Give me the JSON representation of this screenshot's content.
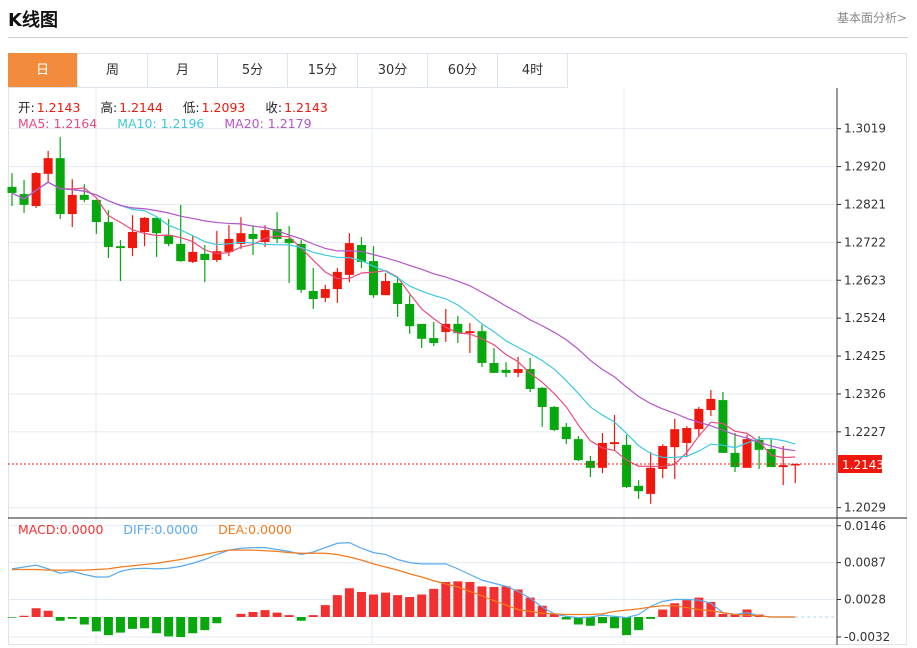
{
  "header": {
    "title": "K线图",
    "more_link": "基本面分析>"
  },
  "tabs": [
    {
      "label": "日",
      "active": true
    },
    {
      "label": "周"
    },
    {
      "label": "月"
    },
    {
      "label": "5分"
    },
    {
      "label": "15分"
    },
    {
      "label": "30分"
    },
    {
      "label": "60分"
    },
    {
      "label": "4时"
    }
  ],
  "colors": {
    "accent": "#f28c3c",
    "up": "#f0180c",
    "down": "#06a80e",
    "ma5": "#ea4c7e",
    "ma10": "#3ec9de",
    "ma20": "#b455c9",
    "macd": "#f23030",
    "diff": "#5aaaf0",
    "dea": "#f27a1e",
    "grid": "#e3ebf2"
  },
  "ohlc_info": {
    "open_label": "开:",
    "open": "1.2143",
    "high_label": "高:",
    "high": "1.2144",
    "low_label": "低:",
    "low": "1.2093",
    "close_label": "收:",
    "close": "1.2143"
  },
  "ma_info": {
    "ma5": "MA5: 1.2164",
    "ma10": "MA10: 1.2196",
    "ma20": "MA20: 1.2179"
  },
  "macd_info": {
    "macd": "MACD:0.0000",
    "diff": "DIFF:0.0000",
    "dea": "DEA:0.0000"
  },
  "current_price": "1.2143",
  "chart_data": [
    {
      "type": "candlestick",
      "y_ticks": [
        "1.3019",
        "1.2920",
        "1.2821",
        "1.2722",
        "1.2623",
        "1.2524",
        "1.2425",
        "1.2326",
        "1.2227",
        "1.2029"
      ],
      "ylim": [
        1.2029,
        1.3019
      ],
      "grid": true,
      "moving_averages": [
        5,
        10,
        20
      ],
      "ohlc": [
        [
          1.2867,
          1.2903,
          1.2817,
          1.2851
        ],
        [
          1.2848,
          1.2885,
          1.2799,
          1.282
        ],
        [
          1.2817,
          1.2906,
          1.2812,
          1.2903
        ],
        [
          1.2901,
          1.2961,
          1.2877,
          1.2942
        ],
        [
          1.2942,
          1.2997,
          1.2783,
          1.2796
        ],
        [
          1.2796,
          1.2887,
          1.2762,
          1.2846
        ],
        [
          1.2846,
          1.2874,
          1.2827,
          1.2833
        ],
        [
          1.2833,
          1.2833,
          1.2744,
          1.2775
        ],
        [
          1.2775,
          1.2806,
          1.2681,
          1.271
        ],
        [
          1.2712,
          1.2728,
          1.2621,
          1.2707
        ],
        [
          1.2707,
          1.2793,
          1.2686,
          1.2749
        ],
        [
          1.2749,
          1.2788,
          1.2712,
          1.2786
        ],
        [
          1.2786,
          1.2786,
          1.2684,
          1.2746
        ],
        [
          1.2741,
          1.2783,
          1.2712,
          1.2718
        ],
        [
          1.2718,
          1.282,
          1.2671,
          1.2673
        ],
        [
          1.2671,
          1.2739,
          1.2668,
          1.2697
        ],
        [
          1.2692,
          1.2715,
          1.2618,
          1.2676
        ],
        [
          1.2676,
          1.2752,
          1.2671,
          1.2699
        ],
        [
          1.2697,
          1.2767,
          1.2686,
          1.2731
        ],
        [
          1.2718,
          1.2788,
          1.2705,
          1.2746
        ],
        [
          1.2744,
          1.2767,
          1.2689,
          1.2731
        ],
        [
          1.2723,
          1.2767,
          1.271,
          1.2754
        ],
        [
          1.2757,
          1.2801,
          1.272,
          1.2731
        ],
        [
          1.2731,
          1.2765,
          1.2616,
          1.272
        ],
        [
          1.2718,
          1.2728,
          1.259,
          1.2598
        ],
        [
          1.2595,
          1.2655,
          1.2548,
          1.2574
        ],
        [
          1.2577,
          1.2611,
          1.2566,
          1.26
        ],
        [
          1.26,
          1.2655,
          1.2564,
          1.2645
        ],
        [
          1.2637,
          1.2746,
          1.2618,
          1.272
        ],
        [
          1.2715,
          1.2736,
          1.2655,
          1.2671
        ],
        [
          1.2673,
          1.2712,
          1.2577,
          1.2584
        ],
        [
          1.2584,
          1.2642,
          1.2584,
          1.2621
        ],
        [
          1.2616,
          1.2631,
          1.2527,
          1.2561
        ],
        [
          1.2561,
          1.2584,
          1.2483,
          1.2503
        ],
        [
          1.2509,
          1.2509,
          1.2446,
          1.247
        ],
        [
          1.2472,
          1.2514,
          1.2451,
          1.2459
        ],
        [
          1.2488,
          1.2548,
          1.2462,
          1.2509
        ],
        [
          1.2509,
          1.253,
          1.2459,
          1.2485
        ],
        [
          1.2485,
          1.2511,
          1.2433,
          1.249
        ],
        [
          1.249,
          1.2506,
          1.2396,
          1.2407
        ],
        [
          1.2407,
          1.2446,
          1.2381,
          1.2381
        ],
        [
          1.2389,
          1.2409,
          1.237,
          1.2381
        ],
        [
          1.2381,
          1.2423,
          1.237,
          1.2391
        ],
        [
          1.2391,
          1.242,
          1.2331,
          1.2339
        ],
        [
          1.2342,
          1.2344,
          1.224,
          1.2292
        ],
        [
          1.2292,
          1.2295,
          1.2229,
          1.2232
        ],
        [
          1.224,
          1.225,
          1.2195,
          1.2208
        ],
        [
          1.2208,
          1.2216,
          1.2151,
          1.2153
        ],
        [
          1.2151,
          1.2164,
          1.2109,
          1.2133
        ],
        [
          1.2133,
          1.2224,
          1.2119,
          1.2198
        ],
        [
          1.2195,
          1.2271,
          1.2177,
          1.22
        ],
        [
          1.2193,
          1.2219,
          1.208,
          1.2083
        ],
        [
          1.2086,
          1.2101,
          1.2052,
          1.2072
        ],
        [
          1.2065,
          1.2174,
          1.2039,
          1.2133
        ],
        [
          1.213,
          1.2195,
          1.2106,
          1.219
        ],
        [
          1.2187,
          1.2261,
          1.2104,
          1.2234
        ],
        [
          1.2198,
          1.2242,
          1.2161,
          1.2237
        ],
        [
          1.2234,
          1.2292,
          1.2214,
          1.2287
        ],
        [
          1.2284,
          1.2336,
          1.2268,
          1.2313
        ],
        [
          1.231,
          1.2331,
          1.2172,
          1.2172
        ],
        [
          1.2172,
          1.2224,
          1.2122,
          1.2135
        ],
        [
          1.2133,
          1.2219,
          1.2133,
          1.2208
        ],
        [
          1.2206,
          1.2216,
          1.213,
          1.218
        ],
        [
          1.2182,
          1.2208,
          1.2135,
          1.2135
        ],
        [
          1.2135,
          1.219,
          1.2088,
          1.214
        ],
        [
          1.2143,
          1.2144,
          1.2093,
          1.2143
        ]
      ]
    },
    {
      "type": "bar+line",
      "y_ticks": [
        "0.0146",
        "0.0087",
        "0.0028",
        "-0.0032"
      ],
      "ylim": [
        -0.0032,
        0.0146
      ],
      "macd": [
        -0.0001,
        0.0002,
        0.0014,
        0.001,
        -0.0006,
        -0.0003,
        -0.0012,
        -0.0023,
        -0.0029,
        -0.0025,
        -0.0019,
        -0.0018,
        -0.0026,
        -0.0031,
        -0.0032,
        -0.0026,
        -0.0021,
        -0.001,
        0.0,
        0.0005,
        0.0008,
        0.0011,
        0.0007,
        0.0003,
        -0.0006,
        0.0003,
        0.0019,
        0.0035,
        0.0046,
        0.004,
        0.0036,
        0.0039,
        0.0035,
        0.0032,
        0.0036,
        0.0045,
        0.0056,
        0.0057,
        0.0056,
        0.0049,
        0.0048,
        0.0049,
        0.0044,
        0.0031,
        0.0018,
        0.0005,
        -0.0004,
        -0.0012,
        -0.0014,
        -0.001,
        -0.0018,
        -0.0029,
        -0.0021,
        -0.0003,
        0.0012,
        0.0022,
        0.0027,
        0.0031,
        0.0024,
        0.0005,
        0.0005,
        0.0012,
        0.0004,
        0.0,
        0.0,
        0.0
      ],
      "diff": [
        0.0077,
        0.008,
        0.0083,
        0.0077,
        0.007,
        0.0073,
        0.0068,
        0.0064,
        0.0064,
        0.0073,
        0.0077,
        0.0078,
        0.0077,
        0.0078,
        0.0081,
        0.0086,
        0.0092,
        0.01,
        0.0107,
        0.011,
        0.0111,
        0.0111,
        0.0108,
        0.0105,
        0.01,
        0.0104,
        0.0111,
        0.0118,
        0.0119,
        0.011,
        0.0103,
        0.01,
        0.0092,
        0.0087,
        0.0085,
        0.0085,
        0.0085,
        0.0077,
        0.0068,
        0.0059,
        0.0054,
        0.0049,
        0.0041,
        0.003,
        0.0016,
        0.0005,
        0.0001,
        -0.0001,
        0.0,
        0.0003,
        0.0001,
        -0.0001,
        0.0004,
        0.0017,
        0.0025,
        0.0028,
        0.0028,
        0.0027,
        0.0022,
        0.0007,
        0.0004,
        0.0007,
        0.0002,
        0.0,
        0.0,
        0.0
      ],
      "dea": [
        0.0076,
        0.0076,
        0.0076,
        0.0075,
        0.0075,
        0.0075,
        0.0075,
        0.0076,
        0.0077,
        0.008,
        0.0082,
        0.0084,
        0.0086,
        0.0089,
        0.0092,
        0.0096,
        0.01,
        0.0104,
        0.0107,
        0.0107,
        0.0107,
        0.0106,
        0.0105,
        0.0103,
        0.0102,
        0.0102,
        0.0102,
        0.01,
        0.0096,
        0.0091,
        0.0085,
        0.008,
        0.0075,
        0.0069,
        0.0064,
        0.0058,
        0.0053,
        0.0048,
        0.0041,
        0.0034,
        0.0026,
        0.0019,
        0.0012,
        0.0009,
        0.0006,
        0.0005,
        0.0004,
        0.0004,
        0.0004,
        0.0005,
        0.0009,
        0.0011,
        0.0013,
        0.0016,
        0.0018,
        0.0018,
        0.0015,
        0.0012,
        0.001,
        0.0007,
        0.0004,
        0.0003,
        0.0002,
        0.0,
        0.0,
        0.0
      ]
    }
  ]
}
